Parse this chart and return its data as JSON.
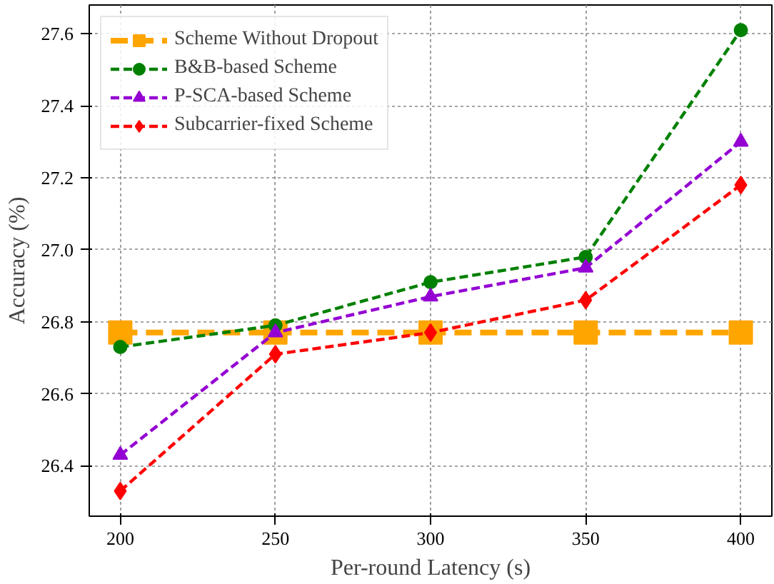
{
  "chart_data": {
    "type": "line",
    "xlabel": "Per-round Latency (s)",
    "ylabel": "Accuracy (%)",
    "x": [
      200,
      250,
      300,
      350,
      400
    ],
    "series": [
      {
        "name": "Scheme Without Dropout",
        "color": "#ffa500",
        "marker": "square",
        "line_style": "dashed",
        "values": [
          26.77,
          26.77,
          26.77,
          26.77,
          26.77
        ]
      },
      {
        "name": "B&B-based Scheme",
        "color": "#008000",
        "marker": "circle",
        "line_style": "dashed",
        "values": [
          26.73,
          26.79,
          26.91,
          26.98,
          27.61
        ]
      },
      {
        "name": "P-SCA-based Scheme",
        "color": "#9400d3",
        "marker": "triangle",
        "line_style": "dashed",
        "values": [
          26.43,
          26.77,
          26.87,
          26.95,
          27.3
        ]
      },
      {
        "name": "Subcarrier-fixed Scheme",
        "color": "#ff0000",
        "marker": "diamond",
        "line_style": "dashed",
        "values": [
          26.33,
          26.71,
          26.77,
          26.86,
          27.18
        ]
      }
    ],
    "xlim": [
      190,
      410
    ],
    "ylim": [
      26.26,
      27.68
    ],
    "xticks": [
      200,
      250,
      300,
      350,
      400
    ],
    "yticks": [
      {
        "value": 26.4,
        "label": "26.4"
      },
      {
        "value": 26.6,
        "label": "26.6"
      },
      {
        "value": 26.8,
        "label": "26.8"
      },
      {
        "value": 27.0,
        "label": "27.0"
      },
      {
        "value": 27.2,
        "label": "27.2"
      },
      {
        "value": 27.4,
        "label": "27.4"
      },
      {
        "value": 27.6,
        "label": "27.6"
      }
    ],
    "grid": true,
    "legend": "top left"
  }
}
